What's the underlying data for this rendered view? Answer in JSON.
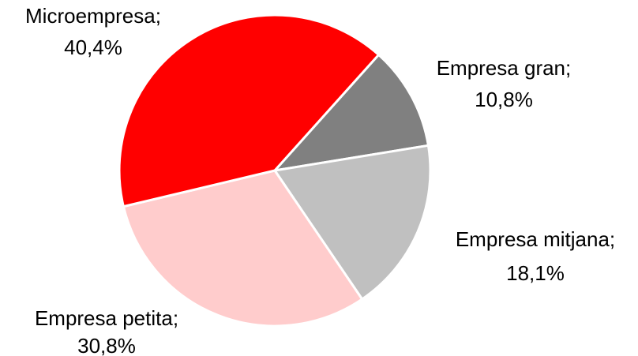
{
  "chart_data": {
    "type": "pie",
    "categories": [
      "Empresa gran",
      "Empresa mitjana",
      "Empresa petita",
      "Microempresa"
    ],
    "label_separator": ";",
    "values": [
      10.8,
      18.1,
      30.8,
      40.4
    ],
    "value_labels": [
      "10,8%",
      "18,1%",
      "30,8%",
      "40,4%"
    ],
    "colors": [
      "#808080",
      "#c0c0c0",
      "#ffcccc",
      "#ff0000"
    ]
  }
}
